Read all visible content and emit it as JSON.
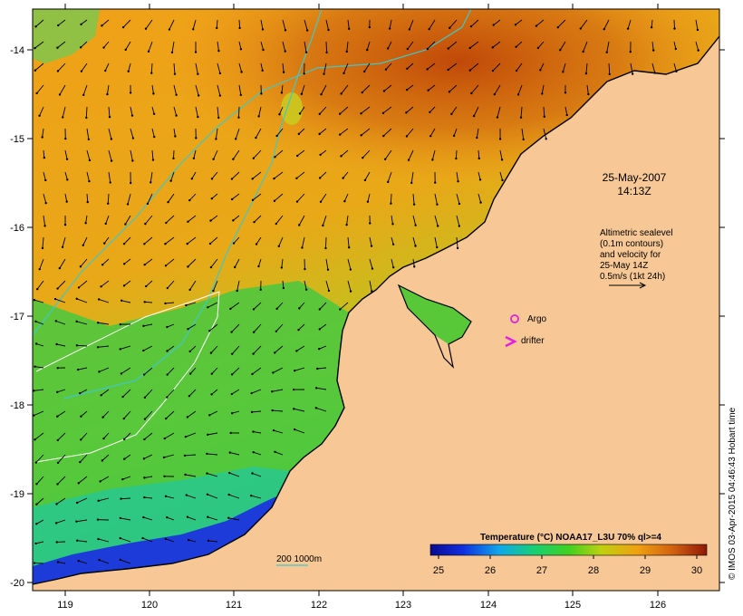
{
  "map": {
    "date_line1": "25-May-2007",
    "date_line2": "14:13Z",
    "altimetry_note": [
      "Altimetric sealevel",
      "(0.1m contours)",
      "and velocity for",
      "25-May 14Z",
      "0.5m/s (1kt 24h)"
    ],
    "argo_label": "Argo",
    "drifter_label": "drifter",
    "depth_contours_label": "200  1000m",
    "credit": "© IMOS 03-Apr-2015 04:46:43 Hobart time",
    "lon_ticks": [
      "119",
      "120",
      "121",
      "122",
      "123",
      "124",
      "125",
      "126"
    ],
    "lat_ticks": [
      "-14",
      "-15",
      "-16",
      "-17",
      "-18",
      "-19",
      "-20"
    ]
  },
  "legend": {
    "title": "Temperature (°C) NOAA17_L3U 70% ql>=4",
    "ticks": [
      "25",
      "26",
      "27",
      "28",
      "29",
      "30"
    ]
  },
  "colors": {
    "land": "#f7c795",
    "warm": "#c84a0a",
    "cool": "#1c3bd8",
    "contour_cyan": "#40c8c8",
    "contour_white": "#ffffff",
    "argo": "#e020e0"
  }
}
